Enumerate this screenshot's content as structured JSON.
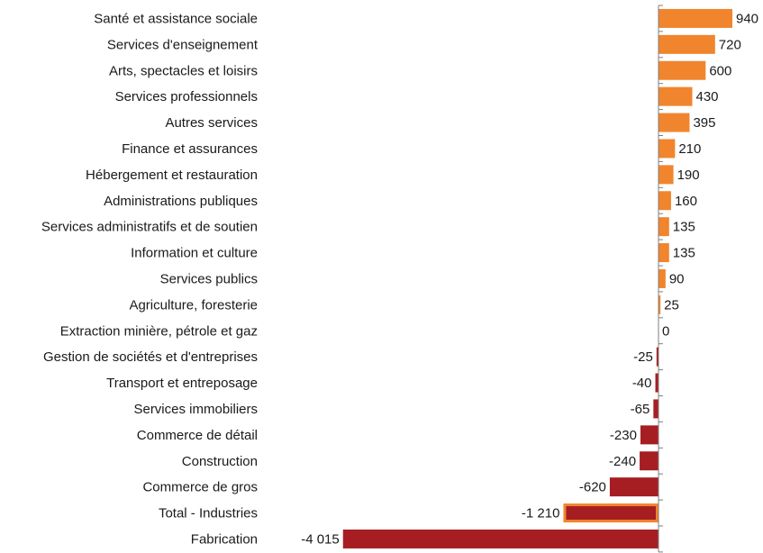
{
  "chart_data": {
    "type": "bar",
    "orientation": "horizontal",
    "categories": [
      "Santé et assistance sociale",
      "Services d'enseignement",
      "Arts, spectacles et loisirs",
      "Services professionnels",
      "Autres services",
      "Finance et assurances",
      "Hébergement et restauration",
      "Administrations publiques",
      "Services administratifs et de soutien",
      "Information et culture",
      "Services publics",
      "Agriculture, foresterie",
      "Extraction minière, pétrole et gaz",
      "Gestion de sociétés et d'entreprises",
      "Transport et entreposage",
      "Services immobiliers",
      "Commerce de détail",
      "Construction",
      "Commerce de gros",
      "Total - Industries",
      "Fabrication"
    ],
    "values": [
      940,
      720,
      600,
      430,
      395,
      210,
      190,
      160,
      135,
      135,
      90,
      25,
      0,
      -25,
      -40,
      -65,
      -230,
      -240,
      -620,
      -1210,
      -4015
    ],
    "value_labels": [
      "940",
      "720",
      "600",
      "430",
      "395",
      "210",
      "190",
      "160",
      "135",
      "135",
      "90",
      "25",
      "0",
      "-25",
      "-40",
      "-65",
      "-230",
      "-240",
      "-620",
      "-1 210",
      "-4 015"
    ],
    "highlighted_category": "Total - Industries",
    "title": "",
    "xlabel": "",
    "ylabel": "",
    "xlim": [
      -4015,
      940
    ],
    "grid": false,
    "legend": "none",
    "colors": {
      "positive": "#F0852D",
      "negative": "#A61E22",
      "highlight_outline": "#F0852D",
      "axis": "#7f7f7f",
      "text": "#1a1a1a"
    }
  }
}
